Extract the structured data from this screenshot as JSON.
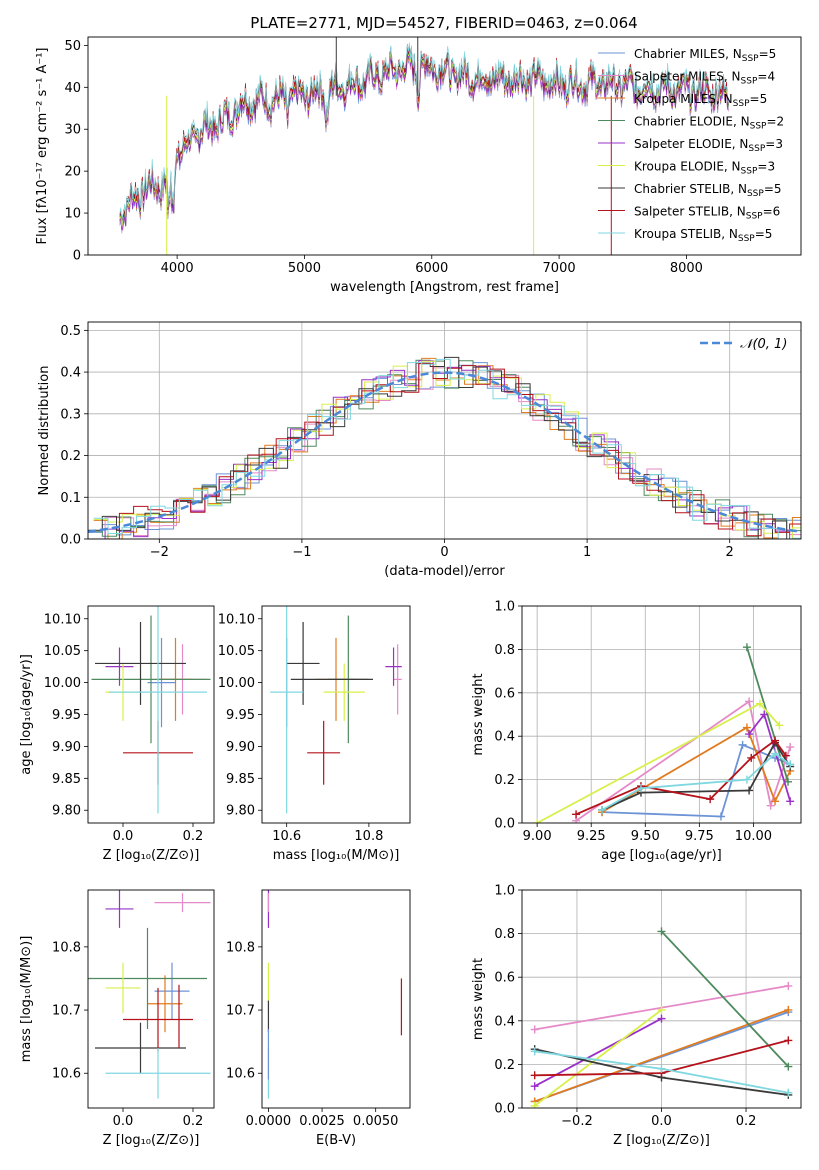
{
  "figure_title": "PLATE=2771, MJD=54527, FIBERID=0463, z=0.064",
  "colors": {
    "Chabrier MILES": "#6b93d6",
    "Salpeter MILES": "#e58ac8",
    "Kroupa MILES": "#e07b1f",
    "Chabrier ELODIE": "#4e8a5e",
    "Salpeter ELODIE": "#9b30c8",
    "Kroupa ELODIE": "#d8ef4a",
    "Chabrier STELIB": "#3a3a3a",
    "Salpeter STELIB": "#b5121b",
    "Kroupa STELIB": "#7fd7e0",
    "gaussian": "#4a88d8"
  },
  "chart_data": [
    {
      "id": "spectrum",
      "type": "line",
      "title": "PLATE=2771, MJD=54527, FIBERID=0463, z=0.064",
      "xlabel": "wavelength [Angstrom, rest frame]",
      "ylabel": "Flux [fλ10⁻¹⁷ erg cm⁻² s⁻¹ A⁻¹]",
      "xlim": [
        3300,
        8900
      ],
      "ylim": [
        0,
        52
      ],
      "xticks": [
        4000,
        5000,
        6000,
        7000,
        8000
      ],
      "yticks": [
        0,
        10,
        20,
        30,
        40,
        50
      ],
      "wavelength_range": [
        3550,
        8330
      ],
      "continuum": {
        "x": [
          3550,
          3650,
          3750,
          3900,
          3950,
          4000,
          4100,
          4200,
          4300,
          4400,
          4500,
          4600,
          4700,
          4800,
          4900,
          5000,
          5200,
          5400,
          5600,
          5800,
          6000,
          6200,
          6400,
          6600,
          6800,
          7000,
          7200,
          7400,
          7600,
          7800,
          8000,
          8200,
          8330
        ],
        "y": [
          10,
          13,
          16,
          17,
          19,
          24,
          27,
          30,
          31,
          33,
          36,
          37,
          37,
          37,
          38,
          38,
          40,
          41,
          43,
          45,
          45,
          43,
          42,
          42,
          42,
          41,
          41,
          41,
          40,
          40,
          39,
          39,
          38
        ]
      },
      "legend": [
        {
          "label": "Chabrier MILES, N",
          "sub": "SSP",
          "value": "=5"
        },
        {
          "label": "Salpeter MILES, N",
          "sub": "SSP",
          "value": "=4"
        },
        {
          "label": "Kroupa MILES, N",
          "sub": "SSP",
          "value": "=5"
        },
        {
          "label": "Chabrier ELODIE, N",
          "sub": "SSP",
          "value": "=2"
        },
        {
          "label": "Salpeter ELODIE, N",
          "sub": "SSP",
          "value": "=3"
        },
        {
          "label": "Kroupa ELODIE, N",
          "sub": "SSP",
          "value": "=3"
        },
        {
          "label": "Chabrier STELIB, N",
          "sub": "SSP",
          "value": "=5"
        },
        {
          "label": "Salpeter STELIB, N",
          "sub": "SSP",
          "value": "=6"
        },
        {
          "label": "Kroupa STELIB, N",
          "sub": "SSP",
          "value": "=5"
        }
      ],
      "legend_position": "top-right"
    },
    {
      "id": "residuals",
      "type": "line",
      "xlabel": "(data-model)/error",
      "ylabel": "Normed distribution",
      "xlim": [
        -2.5,
        2.5
      ],
      "ylim": [
        0,
        0.52
      ],
      "xticks": [
        -2,
        -1,
        0,
        1,
        2
      ],
      "yticks": [
        0.0,
        0.1,
        0.2,
        0.3,
        0.4,
        0.5
      ],
      "tick_labels_x": [
        "−2",
        "−1",
        "0",
        "1",
        "2"
      ],
      "tick_labels_y": [
        "0.0",
        "0.1",
        "0.2",
        "0.3",
        "0.4",
        "0.5"
      ],
      "legend": "𝒩(0, 1)",
      "legend_position": "top-right",
      "grid": true,
      "bin_width": 0.1
    },
    {
      "id": "age_vs_Z",
      "type": "scatter",
      "xlabel": "Z [log₁₀(Z/Z⊙)]",
      "ylabel": "age  [log₁₀(age/yr)]",
      "xlim": [
        -0.1,
        0.26
      ],
      "ylim": [
        9.78,
        10.12
      ],
      "xticks": [
        "0.0",
        "0.2"
      ],
      "yticks": [
        "9.80",
        "9.85",
        "9.90",
        "9.95",
        "10.00",
        "10.05",
        "10.10"
      ],
      "points": [
        {
          "m": "Chabrier MILES",
          "x": 0.11,
          "xerr": 0.04,
          "y": 10.0,
          "yerr": 0.07
        },
        {
          "m": "Salpeter MILES",
          "x": 0.17,
          "xerr": 0.07,
          "y": 10.005,
          "yerr": 0.055
        },
        {
          "m": "Kroupa MILES",
          "x": 0.15,
          "xerr": 0.05,
          "y": 10.005,
          "yerr": 0.065
        },
        {
          "m": "Chabrier ELODIE",
          "x": 0.08,
          "xerr": 0.17,
          "y": 10.005,
          "yerr": 0.1
        },
        {
          "m": "Salpeter ELODIE",
          "x": -0.01,
          "xerr": 0.04,
          "y": 10.025,
          "yerr": 0.03
        },
        {
          "m": "Kroupa ELODIE",
          "x": 0.0,
          "xerr": 0.05,
          "y": 9.985,
          "yerr": 0.045
        },
        {
          "m": "Chabrier STELIB",
          "x": 0.05,
          "xerr": 0.13,
          "y": 10.03,
          "yerr": 0.065
        },
        {
          "m": "Salpeter STELIB",
          "x": 0.1,
          "xerr": 0.1,
          "y": 9.89,
          "yerr": 0.05
        },
        {
          "m": "Kroupa STELIB",
          "x": 0.1,
          "xerr": 0.14,
          "y": 9.985,
          "yerr": 0.19
        }
      ]
    },
    {
      "id": "age_vs_mass",
      "type": "scatter",
      "xlabel": "mass [log₁₀(M/M⊙)]",
      "ylabel": "",
      "xlim": [
        10.54,
        10.9
      ],
      "ylim": [
        9.78,
        10.12
      ],
      "xticks": [
        "10.6",
        "10.8"
      ],
      "yticks": [
        "9.80",
        "9.85",
        "9.90",
        "9.95",
        "10.00",
        "10.05",
        "10.10"
      ],
      "points": [
        {
          "m": "Chabrier MILES",
          "x": 10.6,
          "xerr": 0.0,
          "y": 10.0,
          "yerr": 0.07
        },
        {
          "m": "Salpeter MILES",
          "x": 10.87,
          "xerr": 0.01,
          "y": 10.005,
          "yerr": 0.055
        },
        {
          "m": "Kroupa MILES",
          "x": 10.72,
          "xerr": 0.05,
          "y": 10.005,
          "yerr": 0.065
        },
        {
          "m": "Chabrier ELODIE",
          "x": 10.75,
          "xerr": 0.05,
          "y": 10.005,
          "yerr": 0.1
        },
        {
          "m": "Salpeter ELODIE",
          "x": 10.86,
          "xerr": 0.02,
          "y": 10.025,
          "yerr": 0.03
        },
        {
          "m": "Kroupa ELODIE",
          "x": 10.74,
          "xerr": 0.05,
          "y": 9.985,
          "yerr": 0.045
        },
        {
          "m": "Chabrier STELIB",
          "x": 10.64,
          "xerr": 0.04,
          "y": 10.03,
          "yerr": 0.065
        },
        {
          "m": "Kroupa STELIB",
          "x": 10.6,
          "xerr": 0.04,
          "y": 9.985,
          "yerr": 0.19
        },
        {
          "m": "Salpeter STELIB",
          "x": 10.69,
          "xerr": 0.04,
          "y": 9.89,
          "yerr": 0.05
        },
        {
          "m": "Chabrier STELIB",
          "x": 10.71,
          "xerr": 0.1,
          "y": 10.005,
          "yerr": 0.0
        }
      ]
    },
    {
      "id": "weight_vs_age",
      "type": "line",
      "xlabel": "age  [log₁₀(age/yr)]",
      "ylabel": "mass weight",
      "xlim": [
        8.93,
        10.22
      ],
      "ylim": [
        0.0,
        1.0
      ],
      "xticks": [
        "9.00",
        "9.25",
        "9.50",
        "9.75",
        "10.00"
      ],
      "yticks": [
        "0.0",
        "0.2",
        "0.4",
        "0.6",
        "0.8",
        "1.0"
      ],
      "series": [
        {
          "m": "Chabrier MILES",
          "x": [
            9.3,
            9.85,
            9.95,
            10.1,
            10.17
          ],
          "y": [
            0.05,
            0.03,
            0.36,
            0.3,
            0.27
          ]
        },
        {
          "m": "Salpeter MILES",
          "x": [
            9.18,
            9.98,
            10.08,
            10.17
          ],
          "y": [
            0.01,
            0.56,
            0.08,
            0.35
          ]
        },
        {
          "m": "Kroupa MILES",
          "x": [
            9.3,
            9.97,
            10.1,
            10.17
          ],
          "y": [
            0.05,
            0.44,
            0.1,
            0.24
          ]
        },
        {
          "m": "Chabrier ELODIE",
          "x": [
            9.97,
            10.16
          ],
          "y": [
            0.81,
            0.19
          ]
        },
        {
          "m": "Salpeter ELODIE",
          "x": [
            9.98,
            10.05,
            10.17
          ],
          "y": [
            0.41,
            0.5,
            0.1
          ]
        },
        {
          "m": "Kroupa ELODIE",
          "x": [
            9.0,
            10.03,
            10.12
          ],
          "y": [
            0.0,
            0.55,
            0.45
          ]
        },
        {
          "m": "Chabrier STELIB",
          "x": [
            9.3,
            9.48,
            9.98,
            10.1,
            10.17
          ],
          "y": [
            0.06,
            0.14,
            0.15,
            0.37,
            0.26
          ]
        },
        {
          "m": "Salpeter STELIB",
          "x": [
            9.18,
            9.48,
            9.8,
            9.99,
            10.1,
            10.15
          ],
          "y": [
            0.04,
            0.17,
            0.11,
            0.3,
            0.38,
            0.31
          ]
        },
        {
          "m": "Kroupa STELIB",
          "x": [
            9.3,
            9.48,
            9.97,
            10.1,
            10.17
          ],
          "y": [
            0.06,
            0.16,
            0.2,
            0.32,
            0.27
          ]
        }
      ],
      "grid": true
    },
    {
      "id": "mass_vs_Z",
      "type": "scatter",
      "xlabel": "Z [log₁₀(Z/Z⊙)]",
      "ylabel": "mass [log₁₀(M/M⊙)]",
      "xlim": [
        -0.1,
        0.26
      ],
      "ylim": [
        10.545,
        10.89
      ],
      "xticks": [
        "0.0",
        "0.2"
      ],
      "yticks": [
        "10.6",
        "10.7",
        "10.8"
      ],
      "points": [
        {
          "m": "Chabrier MILES",
          "x": 0.14,
          "xerr": 0.05,
          "y": 10.73,
          "yerr": 0.045
        },
        {
          "m": "Salpeter MILES",
          "x": 0.17,
          "xerr": 0.08,
          "y": 10.87,
          "yerr": 0.015
        },
        {
          "m": "Kroupa MILES",
          "x": 0.12,
          "xerr": 0.05,
          "y": 10.71,
          "yerr": 0.045
        },
        {
          "m": "Chabrier ELODIE",
          "x": 0.07,
          "xerr": 0.17,
          "y": 10.75,
          "yerr": 0.08
        },
        {
          "m": "Salpeter ELODIE",
          "x": -0.01,
          "xerr": 0.04,
          "y": 10.86,
          "yerr": 0.03
        },
        {
          "m": "Kroupa ELODIE",
          "x": 0.0,
          "xerr": 0.05,
          "y": 10.735,
          "yerr": 0.04
        },
        {
          "m": "Chabrier STELIB",
          "x": 0.05,
          "xerr": 0.13,
          "y": 10.64,
          "yerr": 0.04
        },
        {
          "m": "Salpeter STELIB",
          "x": 0.1,
          "xerr": 0.1,
          "y": 10.685,
          "yerr": 0.05
        },
        {
          "m": "Kroupa STELIB",
          "x": 0.1,
          "xerr": 0.15,
          "y": 10.6,
          "yerr": 0.04
        },
        {
          "m": "Salpeter STELIB",
          "x": 0.16,
          "xerr": 0.0,
          "y": 10.69,
          "yerr": 0.05
        }
      ]
    },
    {
      "id": "mass_vs_ebv",
      "type": "scatter",
      "xlabel": "E(B-V)",
      "ylabel": "",
      "xlim": [
        -0.0003,
        0.0066
      ],
      "ylim": [
        10.545,
        10.89
      ],
      "xticks": [
        "0.0000",
        "0.0025",
        "0.0050"
      ],
      "yticks": [
        "10.6",
        "10.7",
        "10.8"
      ],
      "points": [
        {
          "m": "Salpeter ELODIE",
          "x": 0.0,
          "y": 10.86,
          "yerr": 0.03
        },
        {
          "m": "Salpeter MILES",
          "x": 0.0,
          "y": 10.87,
          "yerr": 0.015
        },
        {
          "m": "Kroupa ELODIE",
          "x": 0.0,
          "y": 10.735,
          "yerr": 0.04
        },
        {
          "m": "Chabrier STELIB",
          "x": 0.0,
          "y": 10.69,
          "yerr": 0.025
        },
        {
          "m": "Kroupa STELIB",
          "x": 0.0,
          "y": 10.6,
          "yerr": 0.04
        },
        {
          "m": "Chabrier MILES",
          "x": 0.0,
          "y": 10.63,
          "yerr": 0.04
        },
        {
          "m": "Salpeter STELIB",
          "x": 0.0062,
          "y": 10.705,
          "yerr": 0.045
        }
      ]
    },
    {
      "id": "weight_vs_Z",
      "type": "line",
      "xlabel": "Z [log₁₀(Z/Z⊙)]",
      "ylabel": "mass weight",
      "xlim": [
        -0.33,
        0.33
      ],
      "ylim": [
        0.0,
        1.0
      ],
      "xticks": [
        "−0.2",
        "0.0",
        "0.2"
      ],
      "xtick_values": [
        -0.2,
        0.0,
        0.2
      ],
      "yticks": [
        "0.0",
        "0.2",
        "0.4",
        "0.6",
        "0.8",
        "1.0"
      ],
      "series": [
        {
          "m": "Chabrier MILES",
          "x": [
            -0.3,
            0.3
          ],
          "y": [
            0.03,
            0.44
          ]
        },
        {
          "m": "Salpeter MILES",
          "x": [
            -0.3,
            0.3
          ],
          "y": [
            0.36,
            0.56
          ]
        },
        {
          "m": "Kroupa MILES",
          "x": [
            -0.3,
            0.3
          ],
          "y": [
            0.03,
            0.45
          ]
        },
        {
          "m": "Chabrier ELODIE",
          "x": [
            0.0,
            0.3
          ],
          "y": [
            0.81,
            0.19
          ]
        },
        {
          "m": "Salpeter ELODIE",
          "x": [
            -0.3,
            0.0
          ],
          "y": [
            0.1,
            0.41
          ]
        },
        {
          "m": "Kroupa ELODIE",
          "x": [
            -0.3,
            0.0
          ],
          "y": [
            0.01,
            0.45
          ]
        },
        {
          "m": "Chabrier STELIB",
          "x": [
            -0.3,
            0.0,
            0.3
          ],
          "y": [
            0.27,
            0.14,
            0.06
          ]
        },
        {
          "m": "Salpeter STELIB",
          "x": [
            -0.3,
            0.0,
            0.3
          ],
          "y": [
            0.15,
            0.16,
            0.31
          ]
        },
        {
          "m": "Kroupa STELIB",
          "x": [
            -0.3,
            0.0,
            0.3
          ],
          "y": [
            0.26,
            0.18,
            0.07
          ]
        }
      ],
      "grid": true
    }
  ]
}
